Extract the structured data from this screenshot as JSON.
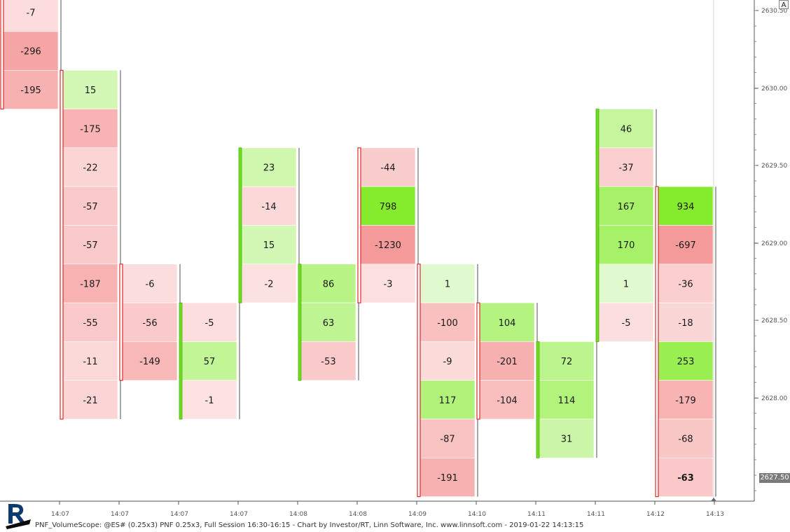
{
  "chart_data": {
    "type": "heatmap",
    "subtype": "point-and-figure volume scope",
    "y_axis": {
      "ticks": [
        "2630.50",
        "2630.00",
        "2629.50",
        "2629.00",
        "2628.50",
        "2628.00"
      ],
      "position": "right"
    },
    "x_axis": {
      "ticks": [
        "14:07",
        "14:07",
        "14:07",
        "14:07",
        "14:08",
        "14:08",
        "14:09",
        "14:10",
        "14:11",
        "14:11",
        "14:12",
        "14:13"
      ]
    },
    "current_price": "2627.50",
    "columns": [
      {
        "direction": "down",
        "start_level": 0,
        "values": [
          "-7",
          "-296",
          "-195"
        ]
      },
      {
        "direction": "down",
        "start_level": 2,
        "values": [
          "15",
          "-175",
          "-22",
          "-57",
          "-57",
          "-187",
          "-55",
          "-11",
          "-21"
        ]
      },
      {
        "direction": "down",
        "start_level": 7,
        "values": [
          "-6",
          "-56",
          "-149"
        ]
      },
      {
        "direction": "up",
        "start_level": 8,
        "values": [
          "-5",
          "57",
          "-1"
        ]
      },
      {
        "direction": "up",
        "start_level": 4,
        "values": [
          "23",
          "-14",
          "15",
          "-2"
        ]
      },
      {
        "direction": "up",
        "start_level": 7,
        "values": [
          "86",
          "63",
          "-53"
        ]
      },
      {
        "direction": "down",
        "start_level": 4,
        "values": [
          "-44",
          "798",
          "-1230",
          "-3"
        ]
      },
      {
        "direction": "down",
        "start_level": 7,
        "values": [
          "1",
          "-100",
          "-9",
          "117",
          "-87",
          "-191"
        ]
      },
      {
        "direction": "down",
        "start_level": 8,
        "values": [
          "104",
          "-201",
          "-104"
        ]
      },
      {
        "direction": "up",
        "start_level": 9,
        "values": [
          "72",
          "114",
          "31"
        ]
      },
      {
        "direction": "up",
        "start_level": 3,
        "values": [
          "46",
          "-37",
          "167",
          "170",
          "1",
          "-5"
        ]
      },
      {
        "direction": "down",
        "start_level": 5,
        "values": [
          "934",
          "-697",
          "-36",
          "-18",
          "253",
          "-179",
          "-68",
          "-63"
        ]
      }
    ],
    "colors": {
      "positive_low": "#e6fad6",
      "positive_high": "#84ec2c",
      "negative_low": "#fde6e6",
      "negative_high": "#f59a9a",
      "down_bar": "#e0282a",
      "up_bar": "#6fdc1f"
    }
  },
  "footer_text": "PNF_VolumeScope: @ES# (0.25x3) PNF 0.25x3, Full Session 16:30-16:15 - Chart by Investor/RT, Linn Software, Inc. www.linnsoft.com - 2019-01-22 14:13:15",
  "auto_button": "A",
  "logo_icon": "investor-rt-logo"
}
